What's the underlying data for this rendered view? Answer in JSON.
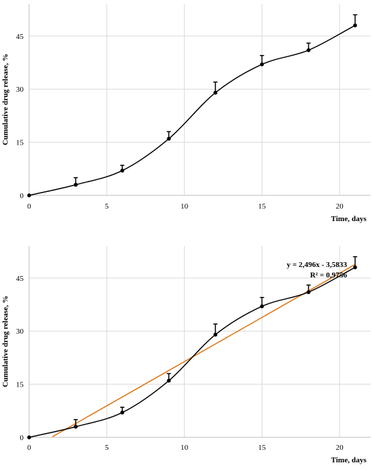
{
  "chart_data": [
    {
      "type": "line",
      "xlabel": "Time, days",
      "ylabel": "Cumulative drug release, %",
      "xlim": [
        0,
        22
      ],
      "ylim": [
        0,
        54
      ],
      "x_ticks": [
        0,
        5,
        10,
        15,
        20
      ],
      "y_ticks": [
        0,
        15,
        30,
        45
      ],
      "grid": true,
      "legend": "none",
      "series": [
        {
          "x": [
            0,
            3,
            6,
            9,
            12,
            15,
            18,
            21
          ],
          "y": [
            0,
            3,
            7,
            16,
            29,
            37,
            41,
            48
          ],
          "error": [
            0,
            2,
            1.5,
            2,
            3,
            2.5,
            2,
            3
          ]
        }
      ]
    },
    {
      "type": "line",
      "xlabel": "Time, days",
      "ylabel": "Cumulative drug release, %",
      "xlim": [
        0,
        22
      ],
      "ylim": [
        0,
        54
      ],
      "x_ticks": [
        0,
        5,
        10,
        15,
        20
      ],
      "y_ticks": [
        0,
        15,
        30,
        45
      ],
      "grid": true,
      "legend": "none",
      "series": [
        {
          "x": [
            0,
            3,
            6,
            9,
            12,
            15,
            18,
            21
          ],
          "y": [
            0,
            3,
            7,
            16,
            29,
            37,
            41,
            48
          ],
          "error": [
            0,
            2,
            1.5,
            2,
            3,
            2.5,
            2,
            3
          ]
        }
      ],
      "trendline": {
        "slope": 2.496,
        "intercept": -3.5833,
        "x_range": [
          1.5,
          21
        ],
        "equation": "y = 2,496x - 3,5833",
        "r_squared": "R² = 0,9756",
        "color": "#E07A1F"
      }
    }
  ]
}
